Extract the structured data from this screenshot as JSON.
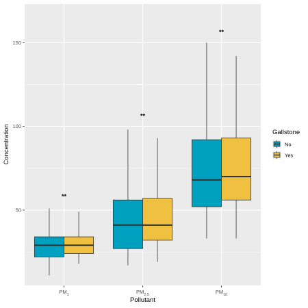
{
  "chart_data": {
    "type": "box",
    "xlabel": "Pollutant",
    "ylabel": "Concentration",
    "ylim": [
      5,
      173
    ],
    "yticks": [
      50,
      100,
      150
    ],
    "categories": [
      {
        "base": "PM",
        "sub": "1"
      },
      {
        "base": "PM",
        "sub": "2.5"
      },
      {
        "base": "PM",
        "sub": "10"
      }
    ],
    "legend": {
      "title": "Gallstone",
      "position": "right"
    },
    "annotations": [
      "**",
      "**",
      "**"
    ],
    "annotation_y": [
      57,
      105,
      155
    ],
    "series": [
      {
        "name": "No",
        "color": "#00A0C0",
        "boxes": [
          {
            "min": 11,
            "q1": 22,
            "median": 29,
            "q3": 34,
            "max": 51
          },
          {
            "min": 17,
            "q1": 27,
            "median": 41,
            "q3": 56,
            "max": 98
          },
          {
            "min": 33,
            "q1": 52,
            "median": 68,
            "q3": 92,
            "max": 150
          }
        ]
      },
      {
        "name": "Yes",
        "color": "#F0C040",
        "boxes": [
          {
            "min": 18,
            "q1": 24,
            "median": 29,
            "q3": 34,
            "max": 49
          },
          {
            "min": 19,
            "q1": 32,
            "median": 41,
            "q3": 57,
            "max": 93
          },
          {
            "min": 33,
            "q1": 56,
            "median": 70,
            "q3": 93,
            "max": 142
          }
        ]
      }
    ]
  }
}
